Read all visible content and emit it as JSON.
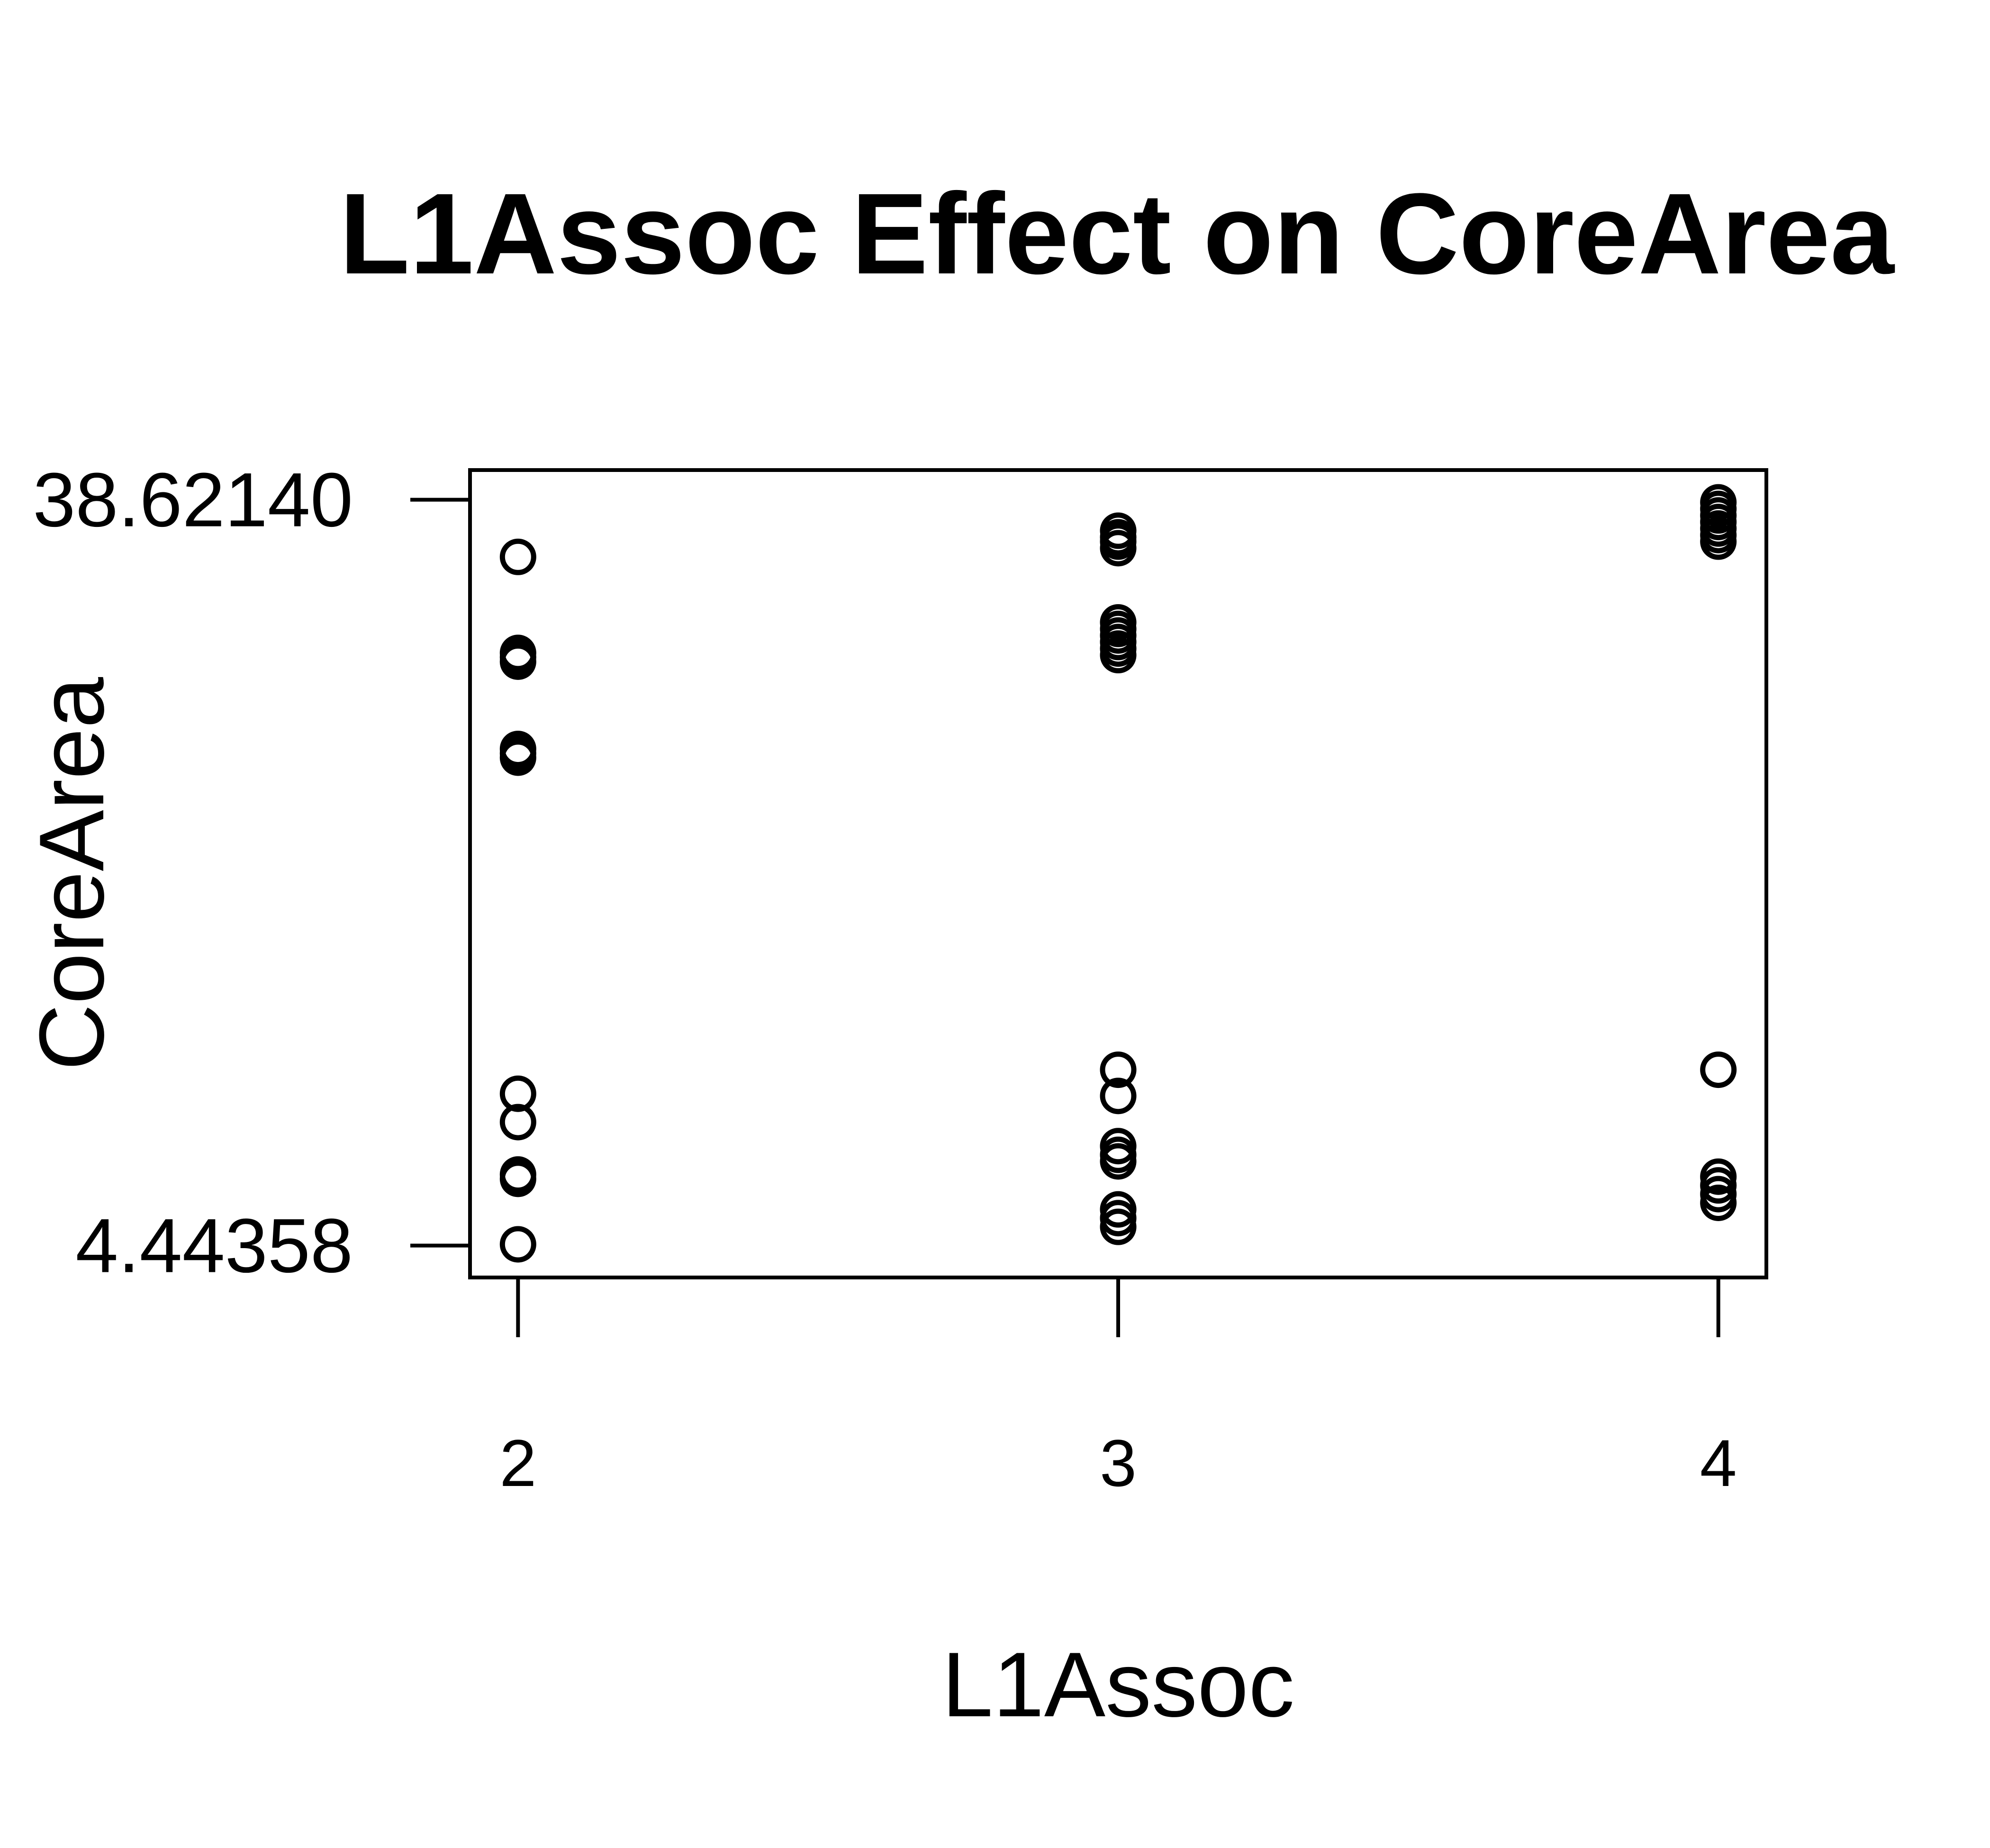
{
  "chart_data": {
    "type": "scatter",
    "title": "L1Assoc Effect on CoreArea",
    "xlabel": "L1Assoc",
    "ylabel": "CoreArea",
    "x_ticks": [
      2,
      3,
      4
    ],
    "x_tick_labels": [
      "2",
      "3",
      "4"
    ],
    "y_ticks": [
      4.44358,
      38.6214
    ],
    "y_tick_labels": [
      "4.44358",
      "38.62140"
    ],
    "xlim": [
      1.92,
      4.08
    ],
    "ylim": [
      2.98,
      39.98
    ],
    "grid": false,
    "legend": "none",
    "points": [
      {
        "x": 2,
        "y": 36.0
      },
      {
        "x": 2,
        "y": 31.6
      },
      {
        "x": 2,
        "y": 31.4
      },
      {
        "x": 2,
        "y": 31.2
      },
      {
        "x": 2,
        "y": 27.2
      },
      {
        "x": 2,
        "y": 27.0
      },
      {
        "x": 2,
        "y": 26.8
      },
      {
        "x": 2,
        "y": 11.4
      },
      {
        "x": 2,
        "y": 10.1
      },
      {
        "x": 2,
        "y": 7.7
      },
      {
        "x": 2,
        "y": 7.5
      },
      {
        "x": 2,
        "y": 4.5
      },
      {
        "x": 3,
        "y": 37.2
      },
      {
        "x": 3,
        "y": 36.9
      },
      {
        "x": 3,
        "y": 36.7
      },
      {
        "x": 3,
        "y": 36.4
      },
      {
        "x": 3,
        "y": 33.0
      },
      {
        "x": 3,
        "y": 32.7
      },
      {
        "x": 3,
        "y": 32.4
      },
      {
        "x": 3,
        "y": 32.1
      },
      {
        "x": 3,
        "y": 31.8
      },
      {
        "x": 3,
        "y": 31.5
      },
      {
        "x": 3,
        "y": 12.5
      },
      {
        "x": 3,
        "y": 11.3
      },
      {
        "x": 3,
        "y": 9.0
      },
      {
        "x": 3,
        "y": 8.6
      },
      {
        "x": 3,
        "y": 8.3
      },
      {
        "x": 3,
        "y": 6.1
      },
      {
        "x": 3,
        "y": 5.7
      },
      {
        "x": 3,
        "y": 5.3
      },
      {
        "x": 4,
        "y": 38.5
      },
      {
        "x": 4,
        "y": 38.2
      },
      {
        "x": 4,
        "y": 37.9
      },
      {
        "x": 4,
        "y": 37.6
      },
      {
        "x": 4,
        "y": 37.3
      },
      {
        "x": 4,
        "y": 37.0
      },
      {
        "x": 4,
        "y": 36.7
      },
      {
        "x": 4,
        "y": 12.5
      },
      {
        "x": 4,
        "y": 7.6
      },
      {
        "x": 4,
        "y": 7.2
      },
      {
        "x": 4,
        "y": 6.8
      },
      {
        "x": 4,
        "y": 6.4
      }
    ]
  }
}
